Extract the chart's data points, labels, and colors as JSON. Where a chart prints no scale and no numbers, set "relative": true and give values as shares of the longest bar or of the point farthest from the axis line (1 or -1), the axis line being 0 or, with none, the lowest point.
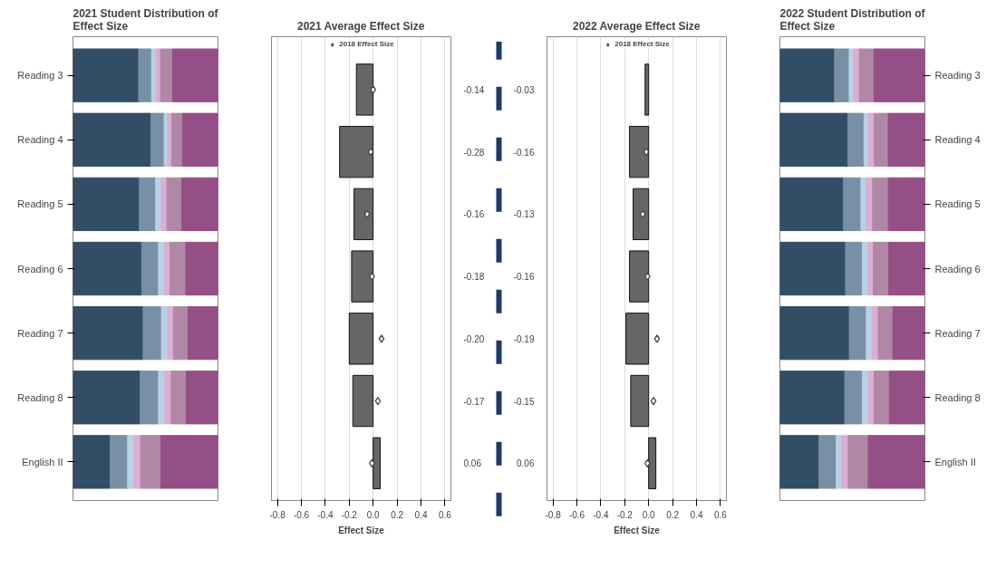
{
  "chart_data": [
    {
      "type": "bar",
      "orientation": "horizontal",
      "stacked": true,
      "relative": true,
      "title": "2021 Student Distribution of Effect Size",
      "categories": [
        "Reading 3",
        "Reading 4",
        "Reading 5",
        "Reading 6",
        "Reading 7",
        "Reading 8",
        "English II"
      ],
      "series": [
        {
          "color": "#324e66",
          "values": [
            0.453,
            0.538,
            0.458,
            0.474,
            0.484,
            0.464,
            0.257
          ]
        },
        {
          "color": "#7890a6",
          "values": [
            0.089,
            0.091,
            0.112,
            0.116,
            0.126,
            0.126,
            0.12
          ]
        },
        {
          "color": "#bcd0e4",
          "values": [
            0.029,
            0.023,
            0.039,
            0.043,
            0.044,
            0.044,
            0.044
          ]
        },
        {
          "color": "#dcaed4",
          "values": [
            0.033,
            0.029,
            0.039,
            0.037,
            0.039,
            0.043,
            0.046
          ]
        },
        {
          "color": "#b088a6",
          "values": [
            0.083,
            0.074,
            0.103,
            0.108,
            0.101,
            0.104,
            0.139
          ]
        },
        {
          "color": "#944f86",
          "values": [
            0.313,
            0.245,
            0.249,
            0.222,
            0.206,
            0.219,
            0.394
          ]
        }
      ]
    },
    {
      "type": "bar",
      "orientation": "horizontal",
      "title": "2021 Average Effect Size",
      "xlabel": "Effect Size",
      "categories": [
        null,
        null,
        null,
        null,
        null,
        null,
        null
      ],
      "xlim": [
        -0.85,
        0.65
      ],
      "xticks": [
        -0.8,
        -0.6,
        -0.4,
        -0.2,
        {
          "value": 0,
          "label": "0.0"
        },
        0.2,
        0.4,
        0.6
      ],
      "grid": "x",
      "tick_labels": "x",
      "legend": "top",
      "marker": "diamond",
      "series": [
        {
          "type": "bar",
          "color": "#666666",
          "values": [
            -0.14,
            -0.28,
            -0.16,
            -0.18,
            -0.2,
            -0.17,
            0.06
          ],
          "value_labels": [
            "-0.14",
            "-0.28",
            "-0.16",
            "-0.18",
            "-0.20",
            "-0.17",
            "0.06"
          ]
        },
        {
          "type": "scatter",
          "name": "2018 Effect Size",
          "color": "#444444",
          "values": [
            0.0,
            -0.02,
            -0.05,
            -0.01,
            0.07,
            0.04,
            -0.01
          ]
        }
      ]
    },
    {
      "type": "bar",
      "orientation": "horizontal",
      "title": "2022 Average Effect Size",
      "xlabel": "Effect Size",
      "categories": [
        null,
        null,
        null,
        null,
        null,
        null,
        null
      ],
      "xlim": [
        -0.85,
        0.65
      ],
      "xticks": [
        -0.8,
        -0.6,
        -0.4,
        -0.2,
        {
          "value": 0,
          "label": "0.0"
        },
        0.2,
        0.4,
        0.6
      ],
      "grid": "x",
      "tick_labels": "x",
      "legend": "top",
      "marker": "diamond",
      "series": [
        {
          "type": "bar",
          "color": "#666666",
          "values": [
            -0.03,
            -0.16,
            -0.13,
            -0.16,
            -0.19,
            -0.15,
            0.06
          ],
          "value_labels": [
            "-0.03",
            "-0.16",
            "-0.13",
            "-0.16",
            "-0.19",
            "-0.15",
            "0.06"
          ]
        },
        {
          "type": "scatter",
          "name": "2018 Effect Size",
          "color": "#444444",
          "values": [
            null,
            -0.02,
            -0.05,
            -0.01,
            0.07,
            0.04,
            -0.01
          ]
        }
      ]
    },
    {
      "type": "bar",
      "orientation": "horizontal",
      "stacked": true,
      "relative": true,
      "title": "2022 Student Distribution of Effect Size",
      "categories": [
        "Reading 3",
        "Reading 4",
        "Reading 5",
        "Reading 6",
        "Reading 7",
        "Reading 8",
        "English II"
      ],
      "series": [
        {
          "color": "#324e66",
          "values": [
            0.377,
            0.469,
            0.438,
            0.453,
            0.479,
            0.447,
            0.27
          ]
        },
        {
          "color": "#7890a6",
          "values": [
            0.101,
            0.111,
            0.121,
            0.115,
            0.117,
            0.121,
            0.119
          ]
        },
        {
          "color": "#bcd0e4",
          "values": [
            0.029,
            0.031,
            0.037,
            0.039,
            0.041,
            0.043,
            0.037
          ]
        },
        {
          "color": "#dcaed4",
          "values": [
            0.041,
            0.039,
            0.043,
            0.037,
            0.041,
            0.039,
            0.045
          ]
        },
        {
          "color": "#b088a6",
          "values": [
            0.101,
            0.097,
            0.109,
            0.107,
            0.101,
            0.105,
            0.138
          ]
        },
        {
          "color": "#944f86",
          "values": [
            0.351,
            0.253,
            0.252,
            0.249,
            0.221,
            0.245,
            0.391
          ]
        }
      ]
    }
  ]
}
